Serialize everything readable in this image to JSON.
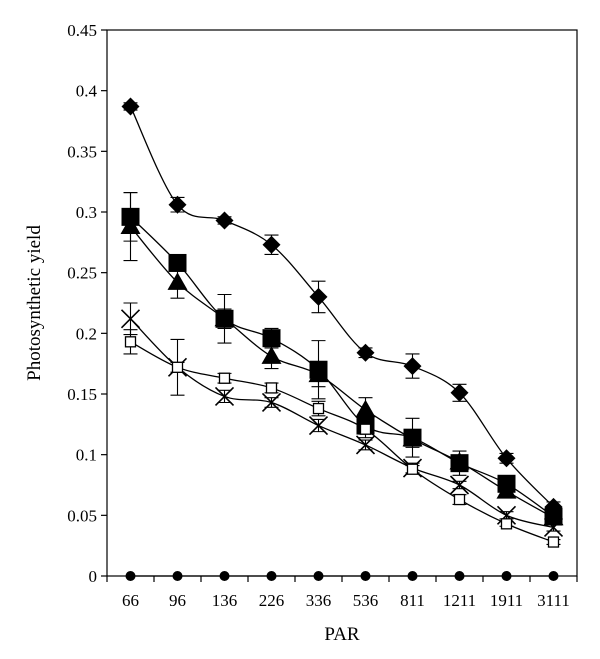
{
  "chart_data": {
    "type": "line",
    "xlabel": "PAR",
    "ylabel": "Photosynthetic yield",
    "categories": [
      "66",
      "96",
      "136",
      "226",
      "336",
      "536",
      "811",
      "1211",
      "1911",
      "3111"
    ],
    "ylim": [
      0,
      0.45
    ],
    "yticks": [
      "0",
      "0.05",
      "0.1",
      "0.15",
      "0.2",
      "0.25",
      "0.3",
      "0.35",
      "0.4",
      "0.45"
    ],
    "grid": false,
    "series": [
      {
        "marker": "diamond",
        "values": [
          0.387,
          0.306,
          0.293,
          0.273,
          0.23,
          0.184,
          0.173,
          0.151,
          0.097,
          0.057
        ],
        "errors": [
          0.003,
          0.006,
          0.003,
          0.008,
          0.013,
          0.004,
          0.01,
          0.007,
          0.004,
          0.004
        ]
      },
      {
        "marker": "square-filled",
        "values": [
          0.296,
          0.258,
          0.212,
          0.196,
          0.17,
          0.124,
          0.114,
          0.093,
          0.076,
          0.049
        ],
        "errors": [
          0.02,
          0.003,
          0.02,
          0.008,
          0.024,
          0.01,
          0.016,
          0.01,
          0.006,
          0.004
        ]
      },
      {
        "marker": "triangle",
        "values": [
          0.288,
          0.242,
          0.212,
          0.181,
          0.166,
          0.137,
          0.113,
          0.094,
          0.07,
          0.048
        ],
        "errors": [
          0.028,
          0.013,
          0.008,
          0.01,
          0.01,
          0.01,
          0.007,
          0.004,
          0.004,
          0.004
        ]
      },
      {
        "marker": "cross",
        "values": [
          0.212,
          0.172,
          0.148,
          0.143,
          0.124,
          0.108,
          0.089,
          0.075,
          0.05,
          0.04
        ],
        "errors": [
          0.013,
          0.023,
          0.005,
          0.004,
          0.005,
          0.004,
          0.004,
          0.003,
          0.003,
          0.003
        ]
      },
      {
        "marker": "square-open",
        "values": [
          0.193,
          0.172,
          0.163,
          0.155,
          0.138,
          0.121,
          0.088,
          0.063,
          0.043,
          0.028
        ],
        "errors": [
          0.01,
          0.004,
          0.004,
          0.004,
          0.006,
          0.004,
          0.003,
          0.004,
          0.002,
          0.002
        ]
      },
      {
        "marker": "circle",
        "values": [
          0,
          0,
          0,
          0,
          0,
          0,
          0,
          0,
          0,
          0
        ],
        "errors": [
          0,
          0,
          0,
          0,
          0,
          0,
          0,
          0,
          0,
          0
        ]
      }
    ]
  }
}
